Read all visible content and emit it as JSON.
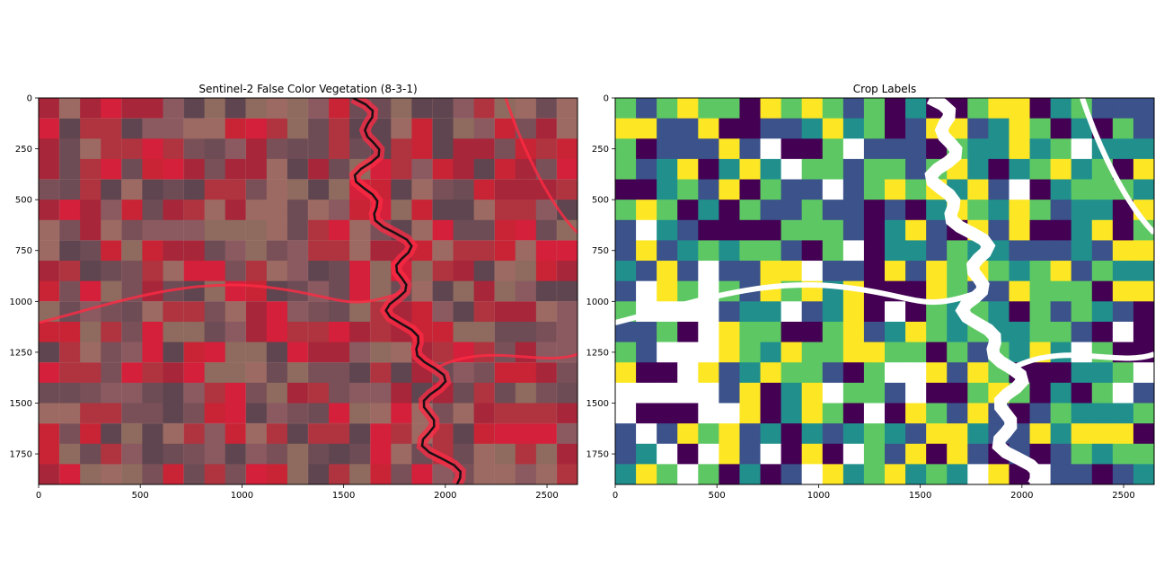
{
  "panels": [
    {
      "title": "Sentinel-2 False Color Vegetation (8-3-1)",
      "x_ticks": [
        "0",
        "500",
        "1000",
        "1500",
        "2000",
        "2500"
      ],
      "y_ticks": [
        "0",
        "250",
        "500",
        "750",
        "1000",
        "1250",
        "1500",
        "1750"
      ],
      "palette": [
        "#7a5058",
        "#8a5a60",
        "#6e4c55",
        "#9c6a62",
        "#b0343f",
        "#c92436",
        "#a8263a",
        "#8e6b5e",
        "#5e454f",
        "#d4203a"
      ],
      "river_color": "#1a0f14",
      "riparian_color": "#ff2a44"
    },
    {
      "title": "Crop Labels",
      "x_ticks": [
        "0",
        "500",
        "1000",
        "1500",
        "2000",
        "2500"
      ],
      "y_ticks": [
        "0",
        "250",
        "500",
        "750",
        "1000",
        "1250",
        "1500",
        "1750"
      ],
      "palette": [
        "#440154",
        "#3b528b",
        "#21908d",
        "#5dc863",
        "#fde725",
        "#ffffff"
      ],
      "river_color": "#ffffff"
    }
  ],
  "chart_data": [
    {
      "type": "heatmap",
      "title": "Sentinel-2 False Color Vegetation (8-3-1)",
      "xlim": [
        0,
        2650
      ],
      "ylim": [
        1900,
        0
      ],
      "x_ticks": [
        0,
        500,
        1000,
        1500,
        2000,
        2500
      ],
      "y_ticks": [
        0,
        250,
        500,
        750,
        1000,
        1250,
        1500,
        1750
      ]
    },
    {
      "type": "heatmap",
      "title": "Crop Labels",
      "xlim": [
        0,
        2650
      ],
      "ylim": [
        1900,
        0
      ],
      "x_ticks": [
        0,
        500,
        1000,
        1500,
        2000,
        2500
      ],
      "y_ticks": [
        0,
        250,
        500,
        750,
        1000,
        1250,
        1500,
        1750
      ]
    }
  ]
}
